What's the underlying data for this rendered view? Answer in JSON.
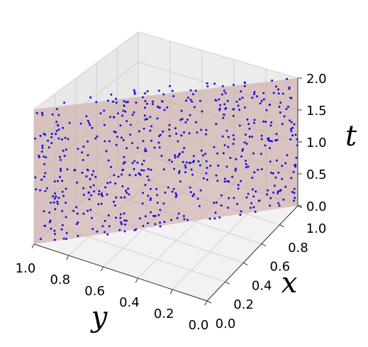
{
  "chart_data": {
    "type": "scatter",
    "projection": "3d",
    "title": "",
    "axes": {
      "x": {
        "label": "x",
        "range": [
          0,
          1
        ],
        "ticks": [
          "0.0",
          "0.2",
          "0.4",
          "0.6",
          "0.8",
          "1.0"
        ]
      },
      "y": {
        "label": "y",
        "range": [
          0,
          1
        ],
        "ticks": [
          "0.0",
          "0.2",
          "0.4",
          "0.6",
          "0.8",
          "1.0"
        ]
      },
      "t": {
        "label": "t",
        "range": [
          0,
          2
        ],
        "ticks": [
          "0.0",
          "0.5",
          "1.0",
          "1.5",
          "2.0"
        ]
      }
    },
    "grid": true,
    "plane": {
      "description_values": {
        "x_at_y1": 0.0,
        "x_at_y0": 1.0
      },
      "color": "#c9a39e",
      "opacity": 0.55
    },
    "point_color": "#1a12d6",
    "point_count": 600,
    "pane_color": "#f2f2f2",
    "grid_color": "#d0d0d0"
  }
}
